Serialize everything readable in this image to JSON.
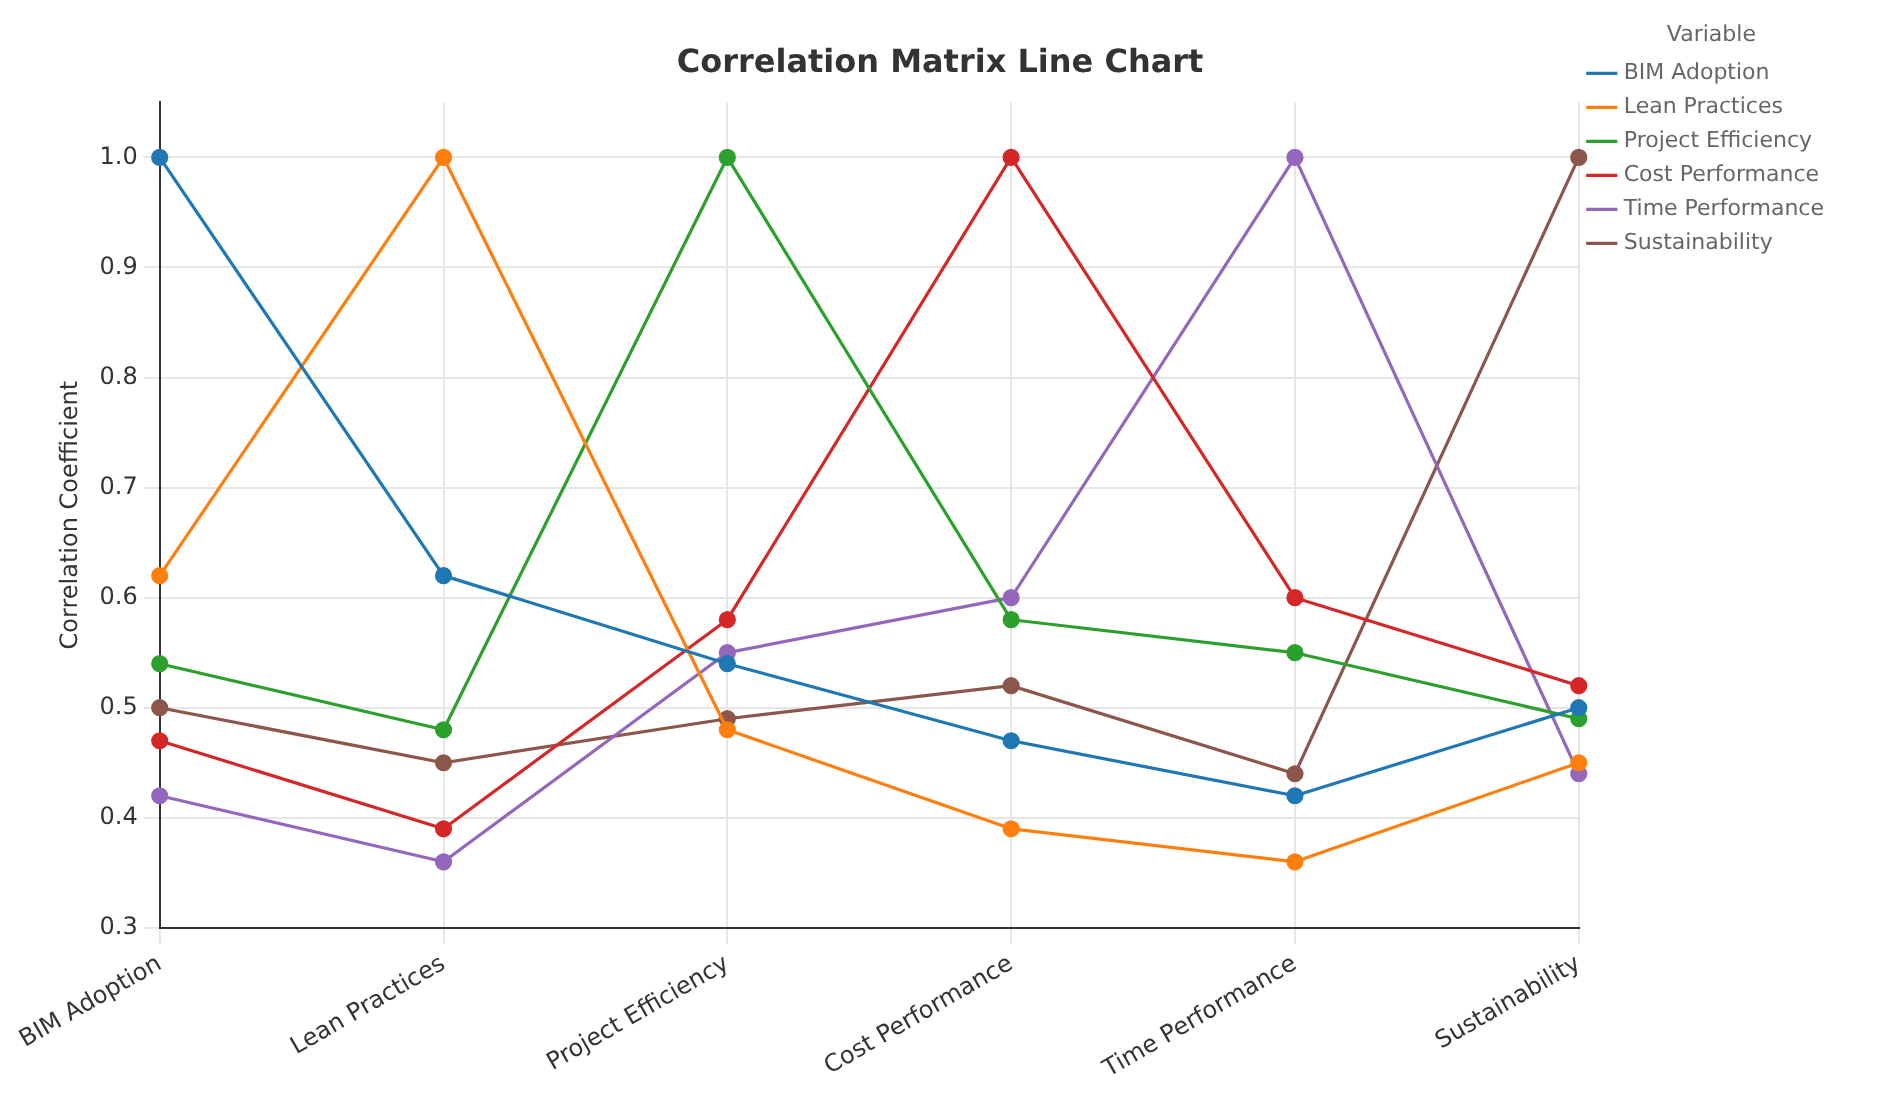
{
  "chart_data": {
    "type": "line",
    "title": "Correlation Matrix Line Chart",
    "ylabel": "Correlation Coefficient",
    "legend_title": "Variable",
    "categories": [
      "BIM Adoption",
      "Lean Practices",
      "Project Efficiency",
      "Cost Performance",
      "Time Performance",
      "Sustainability"
    ],
    "series": [
      {
        "name": "BIM Adoption",
        "color": "#1f77b4",
        "values": [
          1.0,
          0.62,
          0.54,
          0.47,
          0.42,
          0.5
        ]
      },
      {
        "name": "Lean Practices",
        "color": "#ff7f0e",
        "values": [
          0.62,
          1.0,
          0.48,
          0.39,
          0.36,
          0.45
        ]
      },
      {
        "name": "Project Efficiency",
        "color": "#2ca02c",
        "values": [
          0.54,
          0.48,
          1.0,
          0.58,
          0.55,
          0.49
        ]
      },
      {
        "name": "Cost Performance",
        "color": "#d62728",
        "values": [
          0.47,
          0.39,
          0.58,
          1.0,
          0.6,
          0.52
        ]
      },
      {
        "name": "Time Performance",
        "color": "#9467bd",
        "values": [
          0.42,
          0.36,
          0.55,
          0.6,
          1.0,
          0.44
        ]
      },
      {
        "name": "Sustainability",
        "color": "#8c564b",
        "values": [
          0.5,
          0.45,
          0.49,
          0.52,
          0.44,
          1.0
        ]
      }
    ],
    "ylim": [
      0.3,
      1.05
    ],
    "yticks": [
      0.3,
      0.4,
      0.5,
      0.6,
      0.7,
      0.8,
      0.9,
      {
        "value": 1,
        "label": "1.0"
      }
    ],
    "grid": true,
    "legend": "top right",
    "marker": "circle",
    "line_style": "solid"
  }
}
